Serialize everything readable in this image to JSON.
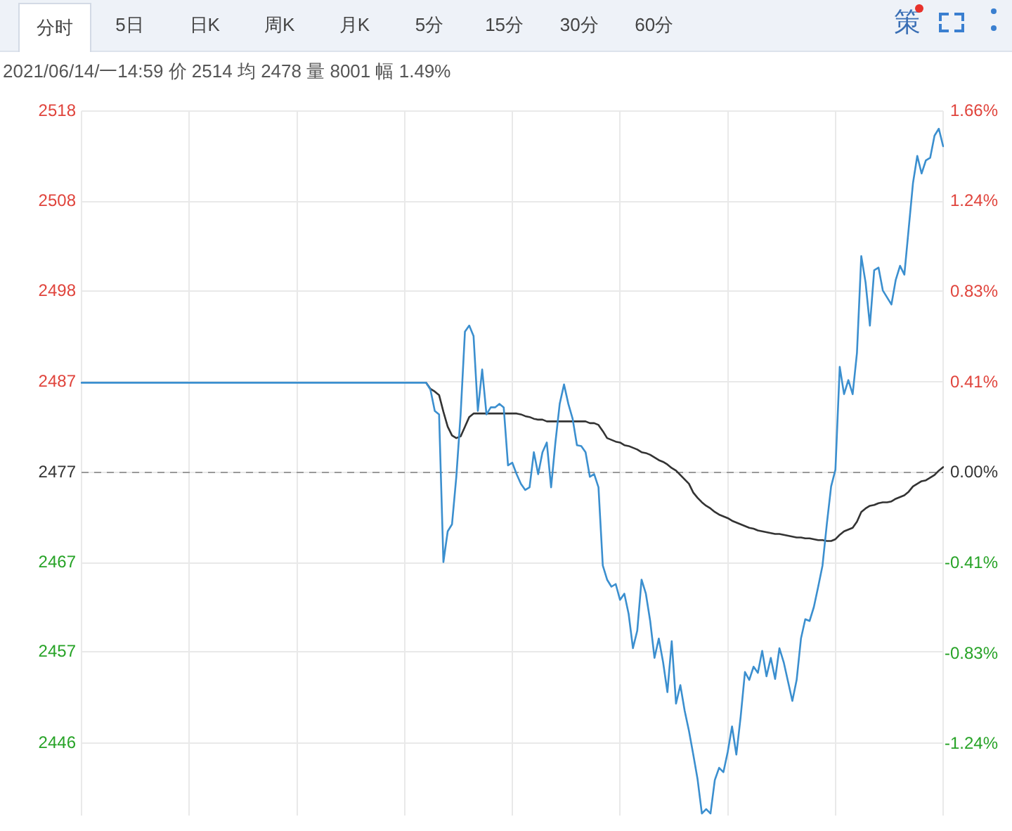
{
  "chart_data": {
    "type": "line",
    "title": "2021/06/14/一14:59 价 2514 均 2478 量 8001 幅 1.49%",
    "annotations": [
      "分时",
      "5日",
      "日K",
      "周K",
      "月K",
      "5分",
      "15分",
      "30分",
      "60分",
      "策"
    ],
    "categories": [
      null,
      null,
      null,
      null,
      null,
      null,
      null,
      null,
      null,
      null,
      null,
      null,
      null,
      null,
      null,
      null,
      null,
      null,
      null,
      null,
      null,
      null,
      null,
      null,
      null,
      null,
      null,
      null,
      null,
      null,
      null,
      null,
      null,
      null,
      null,
      null,
      null,
      null,
      null,
      null,
      null,
      null,
      null,
      null,
      null,
      null,
      null,
      null,
      null,
      null,
      null,
      null,
      null,
      null,
      null,
      null,
      null,
      null,
      null,
      null,
      null,
      null,
      null,
      null,
      null,
      null,
      null,
      null,
      null,
      null,
      null,
      null,
      null,
      null,
      null,
      null,
      null,
      null,
      null,
      null,
      null,
      null,
      null,
      null,
      null,
      null,
      null,
      null,
      null,
      null,
      null,
      null,
      null,
      null,
      null,
      null,
      null,
      null,
      null,
      null,
      null,
      null,
      null,
      null,
      null,
      null,
      null,
      null,
      null,
      null,
      null,
      null,
      null,
      null,
      null,
      null,
      null,
      null,
      null,
      null,
      null,
      null,
      null,
      null,
      null,
      null,
      null,
      null,
      null,
      null,
      null,
      null,
      null,
      null,
      null,
      null,
      null,
      null,
      null,
      null,
      null,
      null,
      null,
      null,
      null,
      null,
      null,
      null,
      null,
      null,
      null,
      null,
      null,
      null,
      null,
      null,
      null,
      null,
      null,
      null,
      null,
      null,
      null,
      null,
      null,
      null,
      null,
      null,
      null,
      null,
      null,
      null,
      null,
      null,
      null,
      null,
      null,
      null,
      null,
      null,
      null,
      null,
      null,
      null,
      null,
      null,
      null,
      null,
      null,
      null,
      null,
      null,
      null,
      null,
      null,
      null,
      null,
      null,
      null,
      null,
      null
    ],
    "series": [
      {
        "color": "#3b8fcf",
        "values": [
          2487.2,
          2487.2,
          2487.2,
          2487.2,
          2487.2,
          2487.2,
          2487.2,
          2487.2,
          2487.2,
          2487.2,
          2487.2,
          2487.2,
          2487.2,
          2487.2,
          2487.2,
          2487.2,
          2487.2,
          2487.2,
          2487.2,
          2487.2,
          2487.2,
          2487.2,
          2487.2,
          2487.2,
          2487.2,
          2487.2,
          2487.2,
          2487.2,
          2487.2,
          2487.2,
          2487.2,
          2487.2,
          2487.2,
          2487.2,
          2487.2,
          2487.2,
          2487.2,
          2487.2,
          2487.2,
          2487.2,
          2487.2,
          2487.2,
          2487.2,
          2487.2,
          2487.2,
          2487.2,
          2487.2,
          2487.2,
          2487.2,
          2487.2,
          2487.2,
          2487.2,
          2487.2,
          2487.2,
          2487.2,
          2487.2,
          2487.2,
          2487.2,
          2487.2,
          2487.2,
          2487.2,
          2487.2,
          2487.2,
          2487.2,
          2487.2,
          2487.2,
          2487.2,
          2487.2,
          2487.2,
          2487.2,
          2487.2,
          2487.2,
          2487.2,
          2487.2,
          2487.2,
          2487.2,
          2487.2,
          2487.2,
          2487.2,
          2487.2,
          2487.2,
          2486.4,
          2484.0,
          2483.6,
          2466.8,
          2470.3,
          2471.1,
          2476.5,
          2483.6,
          2493.0,
          2493.7,
          2492.5,
          2484.0,
          2488.7,
          2483.6,
          2484.4,
          2484.4,
          2484.8,
          2484.4,
          2477.8,
          2478.1,
          2476.8,
          2475.7,
          2475.0,
          2475.3,
          2479.3,
          2476.8,
          2479.3,
          2480.4,
          2475.3,
          2480.4,
          2484.8,
          2487.0,
          2484.8,
          2483.1,
          2480.1,
          2480.0,
          2479.3,
          2476.5,
          2476.8,
          2475.3,
          2466.4,
          2464.8,
          2464.0,
          2464.3,
          2462.5,
          2463.2,
          2460.9,
          2457.0,
          2459.0,
          2464.8,
          2463.2,
          2460.1,
          2455.9,
          2458.1,
          2455.4,
          2452.0,
          2457.8,
          2450.7,
          2452.8,
          2449.9,
          2447.6,
          2444.9,
          2442.1,
          2438.2,
          2438.7,
          2438.2,
          2442.0,
          2443.4,
          2442.9,
          2445.2,
          2448.1,
          2444.9,
          2449.2,
          2454.3,
          2453.4,
          2454.9,
          2454.2,
          2456.7,
          2453.8,
          2455.9,
          2453.5,
          2457.0,
          2455.4,
          2453.2,
          2451.0,
          2453.4,
          2458.1,
          2460.3,
          2460.1,
          2461.7,
          2464.0,
          2466.4,
          2471.1,
          2475.4,
          2477.3,
          2489.0,
          2485.9,
          2487.5,
          2485.9,
          2490.6,
          2501.6,
          2498.6,
          2493.7,
          2500.0,
          2500.3,
          2497.7,
          2496.9,
          2496.1,
          2498.9,
          2500.5,
          2499.5,
          2504.7,
          2509.9,
          2513.0,
          2511.0,
          2512.5,
          2512.8,
          2515.3,
          2516.1,
          2514.1
        ]
      },
      {
        "color": "#333333",
        "values": [
          null,
          null,
          null,
          null,
          null,
          null,
          null,
          null,
          null,
          null,
          null,
          null,
          null,
          null,
          null,
          null,
          null,
          null,
          null,
          null,
          null,
          null,
          null,
          null,
          null,
          null,
          null,
          null,
          null,
          null,
          null,
          null,
          null,
          null,
          null,
          null,
          null,
          null,
          null,
          null,
          null,
          null,
          null,
          null,
          null,
          null,
          null,
          null,
          null,
          null,
          null,
          null,
          null,
          null,
          null,
          null,
          null,
          null,
          null,
          null,
          null,
          null,
          null,
          null,
          null,
          null,
          null,
          null,
          null,
          null,
          null,
          null,
          null,
          null,
          null,
          null,
          null,
          null,
          null,
          null,
          2487.2,
          2486.5,
          2486.2,
          2485.8,
          2483.9,
          2482.2,
          2481.2,
          2480.9,
          2481.1,
          2482.2,
          2483.3,
          2483.7,
          2483.7,
          2483.7,
          2483.7,
          2483.7,
          2483.7,
          2483.7,
          2483.7,
          2483.7,
          2483.7,
          2483.7,
          2483.6,
          2483.4,
          2483.3,
          2483.1,
          2483.0,
          2483.0,
          2482.8,
          2482.8,
          2482.8,
          2482.8,
          2482.8,
          2482.8,
          2482.8,
          2482.8,
          2482.8,
          2482.8,
          2482.6,
          2482.6,
          2482.4,
          2481.7,
          2480.9,
          2480.7,
          2480.5,
          2480.4,
          2480.1,
          2480.0,
          2479.8,
          2479.6,
          2479.3,
          2479.2,
          2479.0,
          2478.7,
          2478.4,
          2478.2,
          2477.9,
          2477.5,
          2477.2,
          2476.7,
          2476.2,
          2475.7,
          2474.7,
          2474.1,
          2473.6,
          2473.2,
          2472.9,
          2472.5,
          2472.2,
          2472.0,
          2471.8,
          2471.5,
          2471.3,
          2471.1,
          2470.9,
          2470.7,
          2470.6,
          2470.4,
          2470.3,
          2470.2,
          2470.1,
          2470.0,
          2470.0,
          2469.9,
          2469.8,
          2469.7,
          2469.6,
          2469.6,
          2469.5,
          2469.5,
          2469.4,
          2469.3,
          2469.3,
          2469.2,
          2469.2,
          2469.4,
          2469.9,
          2470.3,
          2470.5,
          2470.7,
          2471.4,
          2472.5,
          2472.9,
          2473.2,
          2473.3,
          2473.5,
          2473.6,
          2473.6,
          2473.7,
          2474.0,
          2474.2,
          2474.4,
          2474.8,
          2475.4,
          2475.7,
          2476.0,
          2476.1,
          2476.4,
          2476.7,
          2477.2,
          2477.6
        ]
      }
    ],
    "ylim": [
      2438,
      2518.1
    ],
    "yticks": [
      {
        "value": 2518.1,
        "label": "2518"
      },
      {
        "value": 2507.8,
        "label": "2508"
      },
      {
        "value": 2497.6,
        "label": "2498"
      },
      {
        "value": 2487.3,
        "label": "2487"
      },
      2477,
      {
        "value": 2466.7,
        "label": "2467"
      },
      {
        "value": 2456.6,
        "label": "2457"
      },
      {
        "value": 2446.2,
        "label": "2446"
      }
    ],
    "y2lim": [
      -1.57,
      1.66
    ],
    "y2ticks": [
      {
        "value": 1.66,
        "label": "1.66%"
      },
      {
        "value": 1.245,
        "label": "1.24%"
      },
      {
        "value": 0.83,
        "label": "0.83%"
      },
      {
        "value": 0.415,
        "label": "0.41%"
      },
      {
        "value": 0,
        "label": "0.00%"
      },
      {
        "value": -0.415,
        "label": "-0.41%"
      },
      {
        "value": -0.83,
        "label": "-0.83%"
      },
      {
        "value": -1.245,
        "label": "-1.24%"
      }
    ],
    "ref_lines": [
      {
        "axis": "y",
        "value": 2477,
        "color": "#999999",
        "line_style": "dashed"
      }
    ],
    "grid": true
  }
}
